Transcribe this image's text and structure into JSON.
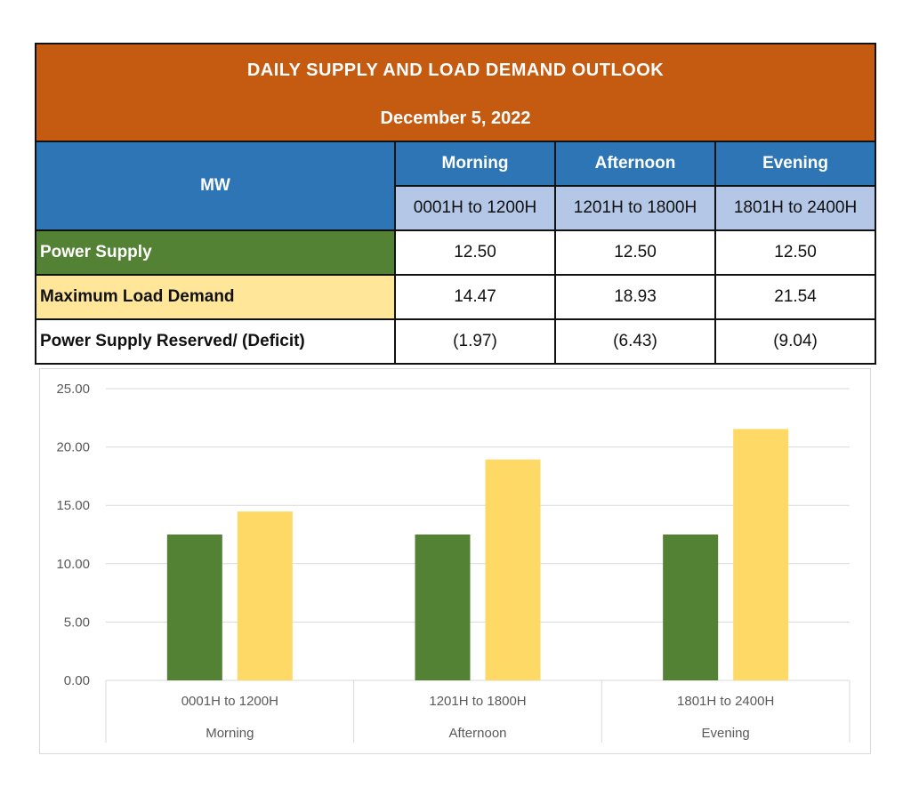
{
  "table": {
    "title": "DAILY SUPPLY AND LOAD DEMAND OUTLOOK",
    "date": "December 5, 2022",
    "unit_label": "MW",
    "periods": [
      {
        "name": "Morning",
        "range": "0001H to 1200H"
      },
      {
        "name": "Afternoon",
        "range": "1201H to 1800H"
      },
      {
        "name": "Evening",
        "range": "1801H to 2400H"
      }
    ],
    "rows": [
      {
        "label": "Power Supply",
        "values": [
          "12.50",
          "12.50",
          "12.50"
        ]
      },
      {
        "label": "Maximum Load Demand",
        "values": [
          "14.47",
          "18.93",
          "21.54"
        ]
      },
      {
        "label": "Power Supply Reserved/ (Deficit)",
        "values": [
          "(1.97)",
          "(6.43)",
          "(9.04)"
        ]
      }
    ]
  },
  "colors": {
    "header": "#c55a11",
    "blue": "#2e75b6",
    "light_blue": "#b4c7e7",
    "supply": "#548235",
    "demand": "#ffd966",
    "demand_label": "#ffe699"
  },
  "chart_data": {
    "type": "bar",
    "categories": [
      "0001H to 1200H",
      "1201H to 1800H",
      "1801H to 2400H"
    ],
    "category_groups": [
      "Morning",
      "Afternoon",
      "Evening"
    ],
    "series": [
      {
        "values": [
          12.5,
          12.5,
          12.5
        ],
        "color": "#548235"
      },
      {
        "values": [
          14.47,
          18.93,
          21.54
        ],
        "color": "#ffd966"
      }
    ],
    "ylim": [
      0,
      25
    ],
    "yticks": [
      "0.00",
      "5.00",
      "10.00",
      "15.00",
      "20.00",
      "25.00"
    ],
    "ytick_values": [
      0,
      5,
      10,
      15,
      20,
      25
    ],
    "grid": true
  }
}
